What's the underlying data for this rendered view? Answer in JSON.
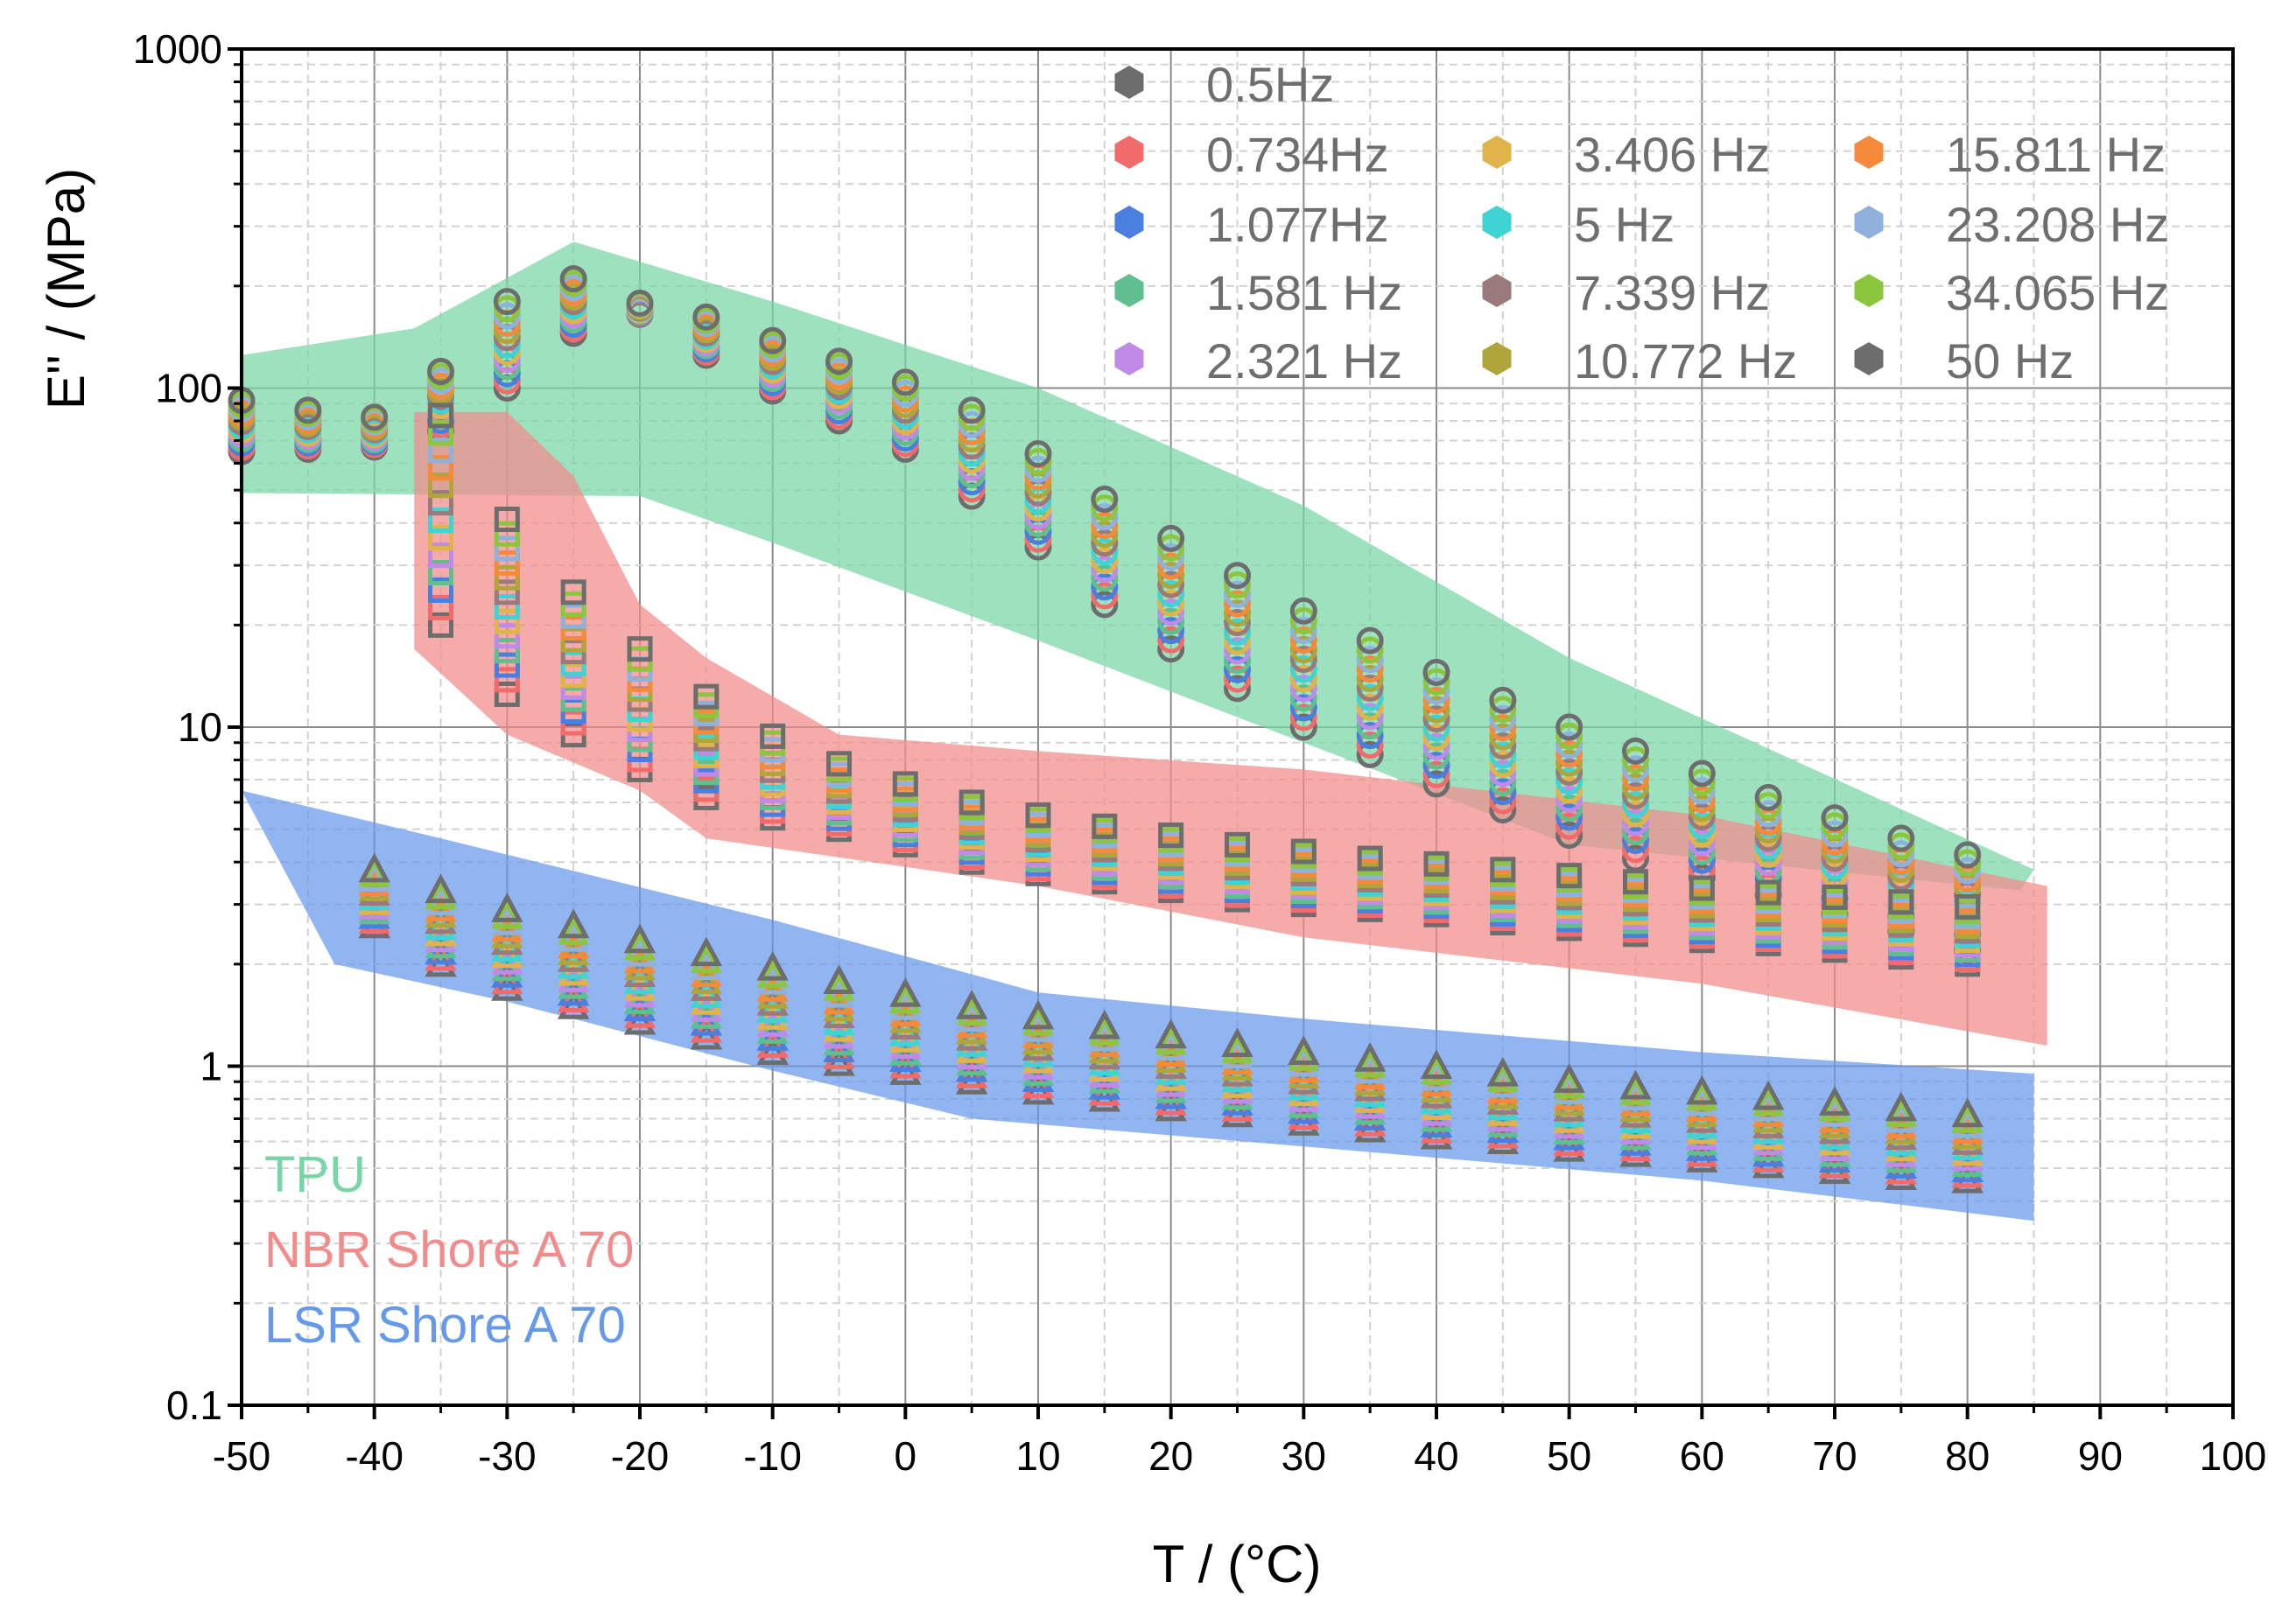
{
  "chart_data": {
    "type": "scatter",
    "xlabel": "T / (°C)",
    "ylabel": "E'' / (MPa)",
    "xscale": "linear",
    "yscale": "log",
    "xlim": [
      -50,
      100
    ],
    "ylim": [
      0.1,
      1000
    ],
    "x_ticks": [
      -50,
      -40,
      -30,
      -20,
      -10,
      0,
      10,
      20,
      30,
      40,
      50,
      60,
      70,
      80,
      90,
      100
    ],
    "x_tick_labels": [
      "-50",
      "-40",
      "-30",
      "-20",
      "-10",
      "0",
      "10",
      "20",
      "30",
      "40",
      "50",
      "60",
      "70",
      "80",
      "90",
      "100"
    ],
    "y_ticks": [
      0.1,
      1,
      10,
      100,
      1000
    ],
    "y_tick_labels": [
      "0.1",
      "1",
      "10",
      "100",
      "1000"
    ],
    "grid": true,
    "legend_position": "top-right",
    "legend": [
      {
        "label": "0.5Hz",
        "color": "#6d6d6d",
        "hz": 0.5
      },
      {
        "label": "0.734Hz",
        "color": "#f26b6b",
        "hz": 0.734
      },
      {
        "label": "1.077Hz",
        "color": "#4a7fe0",
        "hz": 1.077
      },
      {
        "label": "1.581 Hz",
        "color": "#5fbf8e",
        "hz": 1.581
      },
      {
        "label": "2.321 Hz",
        "color": "#c08be6",
        "hz": 2.321
      },
      {
        "label": "3.406 Hz",
        "color": "#e0b44a",
        "hz": 3.406
      },
      {
        "label": "5 Hz",
        "color": "#3fd3d3",
        "hz": 5
      },
      {
        "label": "7.339 Hz",
        "color": "#9a7a7a",
        "hz": 7.339
      },
      {
        "label": "10.772 Hz",
        "color": "#b0a53a",
        "hz": 10.772
      },
      {
        "label": "15.811 Hz",
        "color": "#f58a3c",
        "hz": 15.811
      },
      {
        "label": "23.208 Hz",
        "color": "#8fb1dc",
        "hz": 23.208
      },
      {
        "label": "34.065 Hz",
        "color": "#8cc63f",
        "hz": 34.065
      },
      {
        "label": "50 Hz",
        "color": "#6d6d6d",
        "hz": 50
      }
    ],
    "materials": [
      {
        "name": "TPU",
        "marker": "circle",
        "color": "#78d6a6",
        "band_upper": [
          [
            -50,
            125
          ],
          [
            -37,
            150
          ],
          [
            -25,
            270
          ],
          [
            -10,
            180
          ],
          [
            10,
            100
          ],
          [
            30,
            45
          ],
          [
            50,
            16
          ],
          [
            85,
            3.8
          ]
        ],
        "band_lower": [
          [
            84,
            3.3
          ],
          [
            50,
            4.5
          ],
          [
            30,
            9
          ],
          [
            10,
            18
          ],
          [
            -10,
            35
          ],
          [
            -20,
            48
          ],
          [
            -50,
            49
          ]
        ],
        "x": [
          -50,
          -45,
          -40,
          -35,
          -30,
          -25,
          -20,
          -15,
          -10,
          -5,
          0,
          5,
          10,
          15,
          20,
          25,
          30,
          35,
          40,
          45,
          50,
          55,
          60,
          65,
          70,
          75,
          80
        ],
        "y_low": [
          65,
          66,
          67,
          75,
          100,
          145,
          165,
          125,
          98,
          80,
          66,
          48,
          34,
          23,
          17,
          13,
          10,
          8.3,
          6.8,
          5.7,
          4.8,
          4.1,
          3.6,
          3.2,
          2.8,
          2.5,
          2.2
        ],
        "y_high": [
          92,
          86,
          82,
          112,
          180,
          210,
          178,
          162,
          138,
          120,
          104,
          86,
          64,
          47,
          36,
          28,
          22,
          18,
          14.5,
          12,
          10,
          8.5,
          7.3,
          6.2,
          5.4,
          4.7,
          4.2
        ]
      },
      {
        "name": "NBR Shore A 70",
        "marker": "square",
        "color": "#f28b8b",
        "band_upper": [
          [
            -37,
            85
          ],
          [
            -30,
            85
          ],
          [
            -25,
            55
          ],
          [
            -20,
            23
          ],
          [
            -15,
            16
          ],
          [
            -5,
            9.5
          ],
          [
            10,
            8.5
          ],
          [
            30,
            7.5
          ],
          [
            60,
            5.5
          ],
          [
            86,
            3.4
          ]
        ],
        "band_lower": [
          [
            86,
            1.15
          ],
          [
            60,
            1.75
          ],
          [
            30,
            2.4
          ],
          [
            10,
            3.4
          ],
          [
            -15,
            4.7
          ],
          [
            -20,
            6.5
          ],
          [
            -30,
            9.5
          ],
          [
            -37,
            17
          ]
        ],
        "x": [
          -35,
          -30,
          -25,
          -20,
          -15,
          -10,
          -5,
          0,
          5,
          10,
          15,
          20,
          25,
          30,
          35,
          40,
          45,
          50,
          55,
          60,
          65,
          70,
          75,
          80
        ],
        "y_low": [
          20,
          12.5,
          9.5,
          7.5,
          6.2,
          5.4,
          5.0,
          4.5,
          4.0,
          3.7,
          3.5,
          3.3,
          3.1,
          3.0,
          2.9,
          2.8,
          2.65,
          2.55,
          2.45,
          2.35,
          2.3,
          2.2,
          2.1,
          2.0
        ],
        "y_high": [
          83,
          41,
          25,
          17,
          12.3,
          9.4,
          7.8,
          6.8,
          6.0,
          5.5,
          5.1,
          4.8,
          4.5,
          4.3,
          4.1,
          3.95,
          3.8,
          3.65,
          3.5,
          3.35,
          3.25,
          3.15,
          3.05,
          2.95
        ]
      },
      {
        "name": "LSR Shore A 70",
        "marker": "triangle",
        "color": "#6699ea",
        "band_upper": [
          [
            -50,
            6.5
          ],
          [
            -35,
            4.7
          ],
          [
            -10,
            2.7
          ],
          [
            10,
            1.65
          ],
          [
            30,
            1.38
          ],
          [
            60,
            1.1
          ],
          [
            85,
            0.95
          ]
        ],
        "band_lower": [
          [
            85,
            0.35
          ],
          [
            60,
            0.46
          ],
          [
            30,
            0.58
          ],
          [
            5,
            0.7
          ],
          [
            -10,
            0.97
          ],
          [
            -30,
            1.55
          ],
          [
            -43,
            2
          ]
        ],
        "x": [
          -40,
          -35,
          -30,
          -25,
          -20,
          -15,
          -10,
          -5,
          0,
          5,
          10,
          15,
          20,
          25,
          30,
          35,
          40,
          45,
          50,
          55,
          60,
          65,
          70,
          75,
          80
        ],
        "y_low": [
          2.6,
          2.0,
          1.7,
          1.5,
          1.35,
          1.22,
          1.1,
          1.02,
          0.96,
          0.9,
          0.84,
          0.8,
          0.75,
          0.72,
          0.68,
          0.65,
          0.62,
          0.6,
          0.57,
          0.55,
          0.53,
          0.51,
          0.49,
          0.47,
          0.46
        ],
        "y_high": [
          3.8,
          3.3,
          2.9,
          2.6,
          2.35,
          2.15,
          1.95,
          1.78,
          1.63,
          1.5,
          1.4,
          1.31,
          1.23,
          1.16,
          1.1,
          1.05,
          1.0,
          0.95,
          0.91,
          0.87,
          0.84,
          0.81,
          0.78,
          0.75,
          0.72
        ]
      }
    ]
  }
}
